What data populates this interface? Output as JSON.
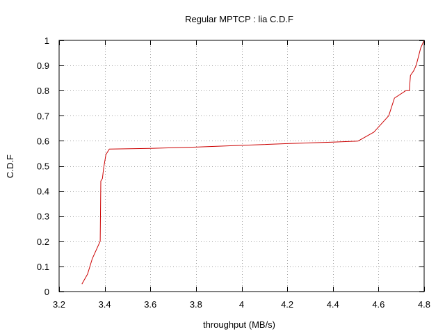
{
  "chart_data": {
    "type": "line",
    "title": "Regular MPTCP : lia C.D.F",
    "xlabel": "throughput (MB/s)",
    "ylabel": "C.D.F",
    "xlim": [
      3.2,
      4.8
    ],
    "ylim": [
      0,
      1
    ],
    "x_ticks": [
      3.2,
      3.4,
      3.6,
      3.8,
      4.0,
      4.2,
      4.4,
      4.6,
      4.8
    ],
    "x_tick_labels": [
      "3.2",
      "3.4",
      "3.6",
      "3.8",
      "4",
      "4.2",
      "4.4",
      "4.6",
      "4.8"
    ],
    "y_ticks": [
      0,
      0.1,
      0.2,
      0.3,
      0.4,
      0.5,
      0.6,
      0.7,
      0.8,
      0.9,
      1.0
    ],
    "y_tick_labels": [
      "0",
      "0.1",
      "0.2",
      "0.3",
      "0.4",
      "0.5",
      "0.6",
      "0.7",
      "0.8",
      "0.9",
      "1"
    ],
    "grid": true,
    "series": [
      {
        "color": "#cc0000",
        "x": [
          3.3,
          3.325,
          3.345,
          3.375,
          3.38,
          3.383,
          3.39,
          3.395,
          3.405,
          3.42,
          3.6,
          3.8,
          4.0,
          4.2,
          4.4,
          4.51,
          4.58,
          4.645,
          4.67,
          4.72,
          4.735,
          4.74,
          4.755,
          4.765,
          4.785,
          4.8
        ],
        "y": [
          0.03,
          0.07,
          0.13,
          0.19,
          0.2,
          0.44,
          0.45,
          0.49,
          0.545,
          0.567,
          0.57,
          0.575,
          0.582,
          0.589,
          0.595,
          0.599,
          0.635,
          0.7,
          0.77,
          0.8,
          0.8,
          0.86,
          0.88,
          0.9,
          0.97,
          1.0
        ]
      }
    ]
  }
}
